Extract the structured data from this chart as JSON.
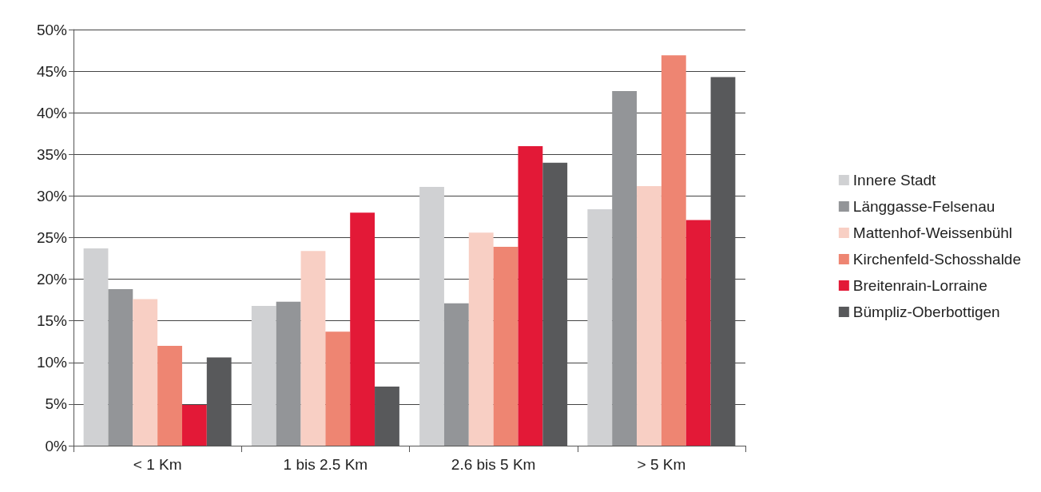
{
  "chart_data": {
    "type": "bar",
    "categories": [
      "< 1 Km",
      "1 bis 2.5 Km",
      "2.6 bis 5 Km",
      "> 5 Km"
    ],
    "series": [
      {
        "name": "Innere Stadt",
        "color": "#d0d1d3",
        "values": [
          23.7,
          16.8,
          31.1,
          28.4
        ]
      },
      {
        "name": "Länggasse-Felsenau",
        "color": "#939598",
        "values": [
          18.8,
          17.3,
          17.1,
          42.6
        ]
      },
      {
        "name": "Mattenhof-Weissenbühl",
        "color": "#f8cfc4",
        "values": [
          17.6,
          23.4,
          25.6,
          31.2
        ]
      },
      {
        "name": "Kirchenfeld-Schosshalde",
        "color": "#ee8572",
        "values": [
          12.0,
          13.7,
          23.9,
          46.9
        ]
      },
      {
        "name": "Breitenrain-Lorraine",
        "color": "#e31937",
        "values": [
          4.9,
          28.0,
          36.0,
          27.1
        ]
      },
      {
        "name": "Bümpliz-Oberbottigen",
        "color": "#58595b",
        "values": [
          10.6,
          7.1,
          34.0,
          44.3
        ]
      }
    ],
    "ylim": [
      0,
      50
    ],
    "yticks": [
      {
        "value": 0,
        "label": "0%"
      },
      {
        "value": 5,
        "label": "5%"
      },
      {
        "value": 10,
        "label": "10%"
      },
      {
        "value": 15,
        "label": "15%"
      },
      {
        "value": 20,
        "label": "20%"
      },
      {
        "value": 25,
        "label": "25%"
      },
      {
        "value": 30,
        "label": "30%"
      },
      {
        "value": 35,
        "label": "35%"
      },
      {
        "value": 40,
        "label": "40%"
      },
      {
        "value": 45,
        "label": "45%"
      },
      {
        "value": 50,
        "label": "50%"
      }
    ],
    "grid": "y",
    "legend": "right"
  }
}
